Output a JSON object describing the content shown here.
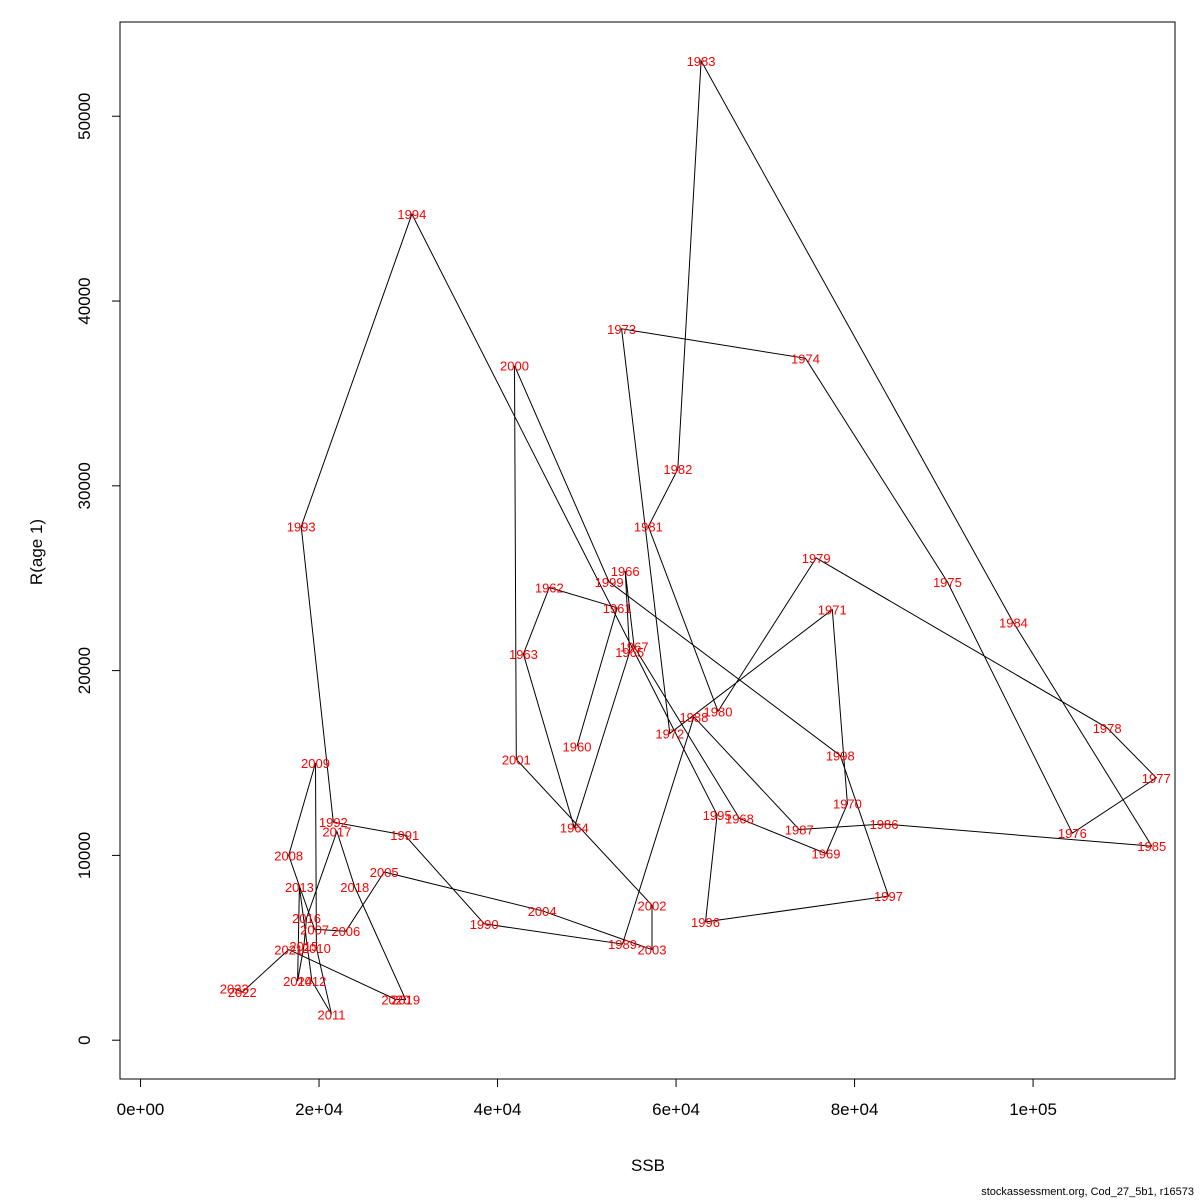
{
  "chart_data": {
    "type": "line",
    "xlabel": "SSB",
    "ylabel": "R(age 1)",
    "xlim": [
      -2300,
      115900
    ],
    "ylim": [
      -2100,
      55100
    ],
    "xticks": [
      {
        "value": 0,
        "label": "0e+00"
      },
      {
        "value": 20000,
        "label": "2e+04"
      },
      {
        "value": 40000,
        "label": "4e+04"
      },
      {
        "value": 60000,
        "label": "6e+04"
      },
      {
        "value": 80000,
        "label": "8e+04"
      },
      {
        "value": 100000,
        "label": "1e+05"
      }
    ],
    "yticks": [
      {
        "value": 0,
        "label": "0"
      },
      {
        "value": 10000,
        "label": "10000"
      },
      {
        "value": 20000,
        "label": "20000"
      },
      {
        "value": 30000,
        "label": "30000"
      },
      {
        "value": 40000,
        "label": "40000"
      },
      {
        "value": 50000,
        "label": "50000"
      }
    ],
    "line_color": "#000000",
    "label_color": "#ff0000",
    "points": [
      {
        "year": "1960",
        "ssb": 48900,
        "r": 15900
      },
      {
        "year": "1961",
        "ssb": 53400,
        "r": 23400
      },
      {
        "year": "1962",
        "ssb": 45800,
        "r": 24500
      },
      {
        "year": "1963",
        "ssb": 42900,
        "r": 20900
      },
      {
        "year": "1964",
        "ssb": 48600,
        "r": 11500
      },
      {
        "year": "1965",
        "ssb": 54800,
        "r": 21000
      },
      {
        "year": "1966",
        "ssb": 54300,
        "r": 25400
      },
      {
        "year": "1967",
        "ssb": 55300,
        "r": 21300
      },
      {
        "year": "1968",
        "ssb": 67100,
        "r": 12000
      },
      {
        "year": "1969",
        "ssb": 76800,
        "r": 10100
      },
      {
        "year": "1970",
        "ssb": 79200,
        "r": 12800
      },
      {
        "year": "1971",
        "ssb": 77500,
        "r": 23300
      },
      {
        "year": "1972",
        "ssb": 59300,
        "r": 16600
      },
      {
        "year": "1973",
        "ssb": 53900,
        "r": 38500
      },
      {
        "year": "1974",
        "ssb": 74500,
        "r": 36900
      },
      {
        "year": "1975",
        "ssb": 90400,
        "r": 24800
      },
      {
        "year": "1976",
        "ssb": 104400,
        "r": 11200
      },
      {
        "year": "1977",
        "ssb": 113800,
        "r": 14200
      },
      {
        "year": "1978",
        "ssb": 108300,
        "r": 16900
      },
      {
        "year": "1979",
        "ssb": 75700,
        "r": 26100
      },
      {
        "year": "1980",
        "ssb": 64700,
        "r": 17800
      },
      {
        "year": "1981",
        "ssb": 56900,
        "r": 27800
      },
      {
        "year": "1982",
        "ssb": 60200,
        "r": 30900
      },
      {
        "year": "1983",
        "ssb": 62800,
        "r": 53000
      },
      {
        "year": "1984",
        "ssb": 97800,
        "r": 22600
      },
      {
        "year": "1985",
        "ssb": 113300,
        "r": 10500
      },
      {
        "year": "1986",
        "ssb": 83300,
        "r": 11700
      },
      {
        "year": "1987",
        "ssb": 73800,
        "r": 11400
      },
      {
        "year": "1988",
        "ssb": 62000,
        "r": 17500
      },
      {
        "year": "1989",
        "ssb": 54000,
        "r": 5200
      },
      {
        "year": "1990",
        "ssb": 38500,
        "r": 6300
      },
      {
        "year": "1991",
        "ssb": 29600,
        "r": 11100
      },
      {
        "year": "1992",
        "ssb": 21600,
        "r": 11800
      },
      {
        "year": "1993",
        "ssb": 18000,
        "r": 27800
      },
      {
        "year": "1994",
        "ssb": 30400,
        "r": 44700
      },
      {
        "year": "1995",
        "ssb": 64600,
        "r": 12200
      },
      {
        "year": "1996",
        "ssb": 63300,
        "r": 6400
      },
      {
        "year": "1997",
        "ssb": 83800,
        "r": 7800
      },
      {
        "year": "1998",
        "ssb": 78400,
        "r": 15400
      },
      {
        "year": "1999",
        "ssb": 52500,
        "r": 24800
      },
      {
        "year": "2000",
        "ssb": 41900,
        "r": 36500
      },
      {
        "year": "2001",
        "ssb": 42100,
        "r": 15200
      },
      {
        "year": "2002",
        "ssb": 57300,
        "r": 7300
      },
      {
        "year": "2003",
        "ssb": 57300,
        "r": 4900
      },
      {
        "year": "2004",
        "ssb": 45000,
        "r": 7000
      },
      {
        "year": "2005",
        "ssb": 27300,
        "r": 9100
      },
      {
        "year": "2006",
        "ssb": 23000,
        "r": 5900
      },
      {
        "year": "2007",
        "ssb": 19500,
        "r": 6000
      },
      {
        "year": "2008",
        "ssb": 16600,
        "r": 10000
      },
      {
        "year": "2009",
        "ssb": 19600,
        "r": 15000
      },
      {
        "year": "2010",
        "ssb": 19700,
        "r": 5000
      },
      {
        "year": "2011",
        "ssb": 21400,
        "r": 1400
      },
      {
        "year": "2012",
        "ssb": 19200,
        "r": 3200
      },
      {
        "year": "2013",
        "ssb": 17800,
        "r": 8300
      },
      {
        "year": "2014",
        "ssb": 17600,
        "r": 3200
      },
      {
        "year": "2015",
        "ssb": 18300,
        "r": 5100
      },
      {
        "year": "2016",
        "ssb": 18600,
        "r": 6600
      },
      {
        "year": "2017",
        "ssb": 22000,
        "r": 11300
      },
      {
        "year": "2018",
        "ssb": 24000,
        "r": 8300
      },
      {
        "year": "2019",
        "ssb": 29700,
        "r": 2200
      },
      {
        "year": "2020",
        "ssb": 28600,
        "r": 2200
      },
      {
        "year": "2021",
        "ssb": 16600,
        "r": 4900
      },
      {
        "year": "2022",
        "ssb": 11400,
        "r": 2600
      },
      {
        "year": "2023",
        "ssb": 10500,
        "r": 2800
      }
    ]
  },
  "footer": {
    "credit": "stockassessment.org, Cod_27_5b1, r16573"
  }
}
